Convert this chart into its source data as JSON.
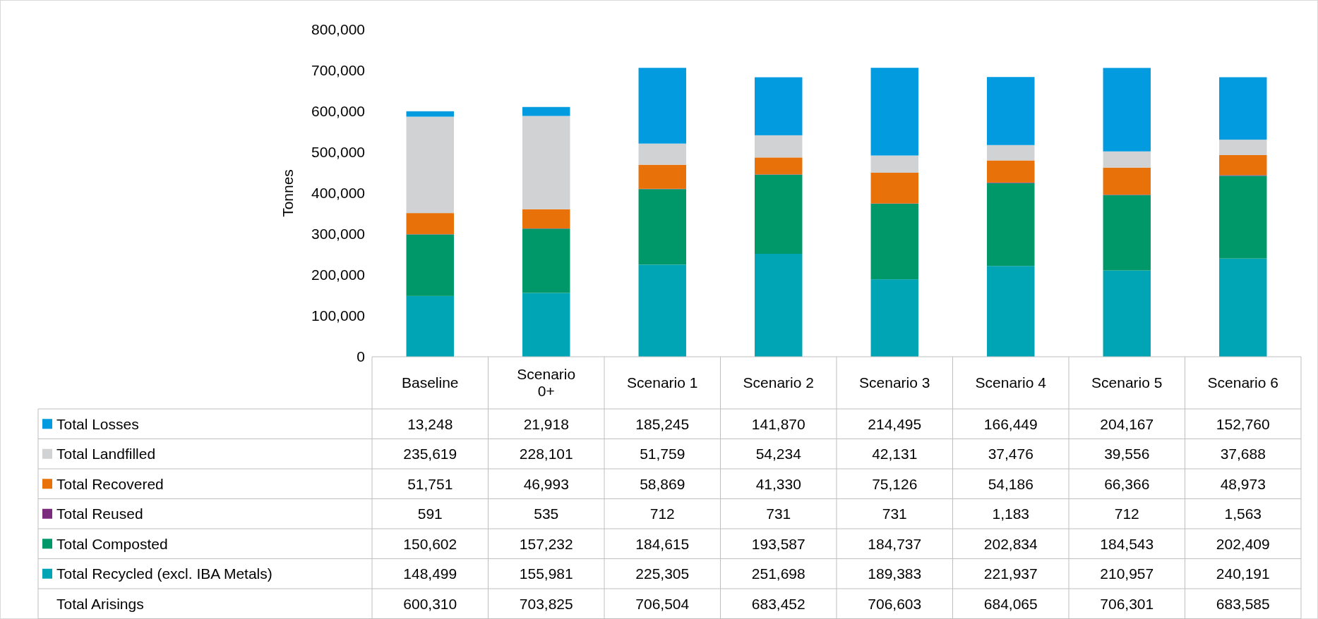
{
  "chart_data": {
    "type": "bar",
    "stacked": true,
    "ylabel": "Tonnes",
    "categories": [
      "Baseline",
      "Scenario 0+",
      "Scenario 1",
      "Scenario 2",
      "Scenario 3",
      "Scenario 4",
      "Scenario 5",
      "Scenario 6"
    ],
    "series": [
      {
        "name": "Total Recycled (excl. IBA Metals)",
        "color": "#00a5b5",
        "values": [
          148499,
          155981,
          225305,
          251698,
          189383,
          221937,
          210957,
          240191
        ],
        "value_labels": [
          "148,499",
          "155,981",
          "225,305",
          "251,698",
          "189,383",
          "221,937",
          "210,957",
          "240,191"
        ]
      },
      {
        "name": "Total Composted",
        "color": "#009868",
        "values": [
          150602,
          157232,
          184615,
          193587,
          184737,
          202834,
          184543,
          202409
        ],
        "value_labels": [
          "150,602",
          "157,232",
          "184,615",
          "193,587",
          "184,737",
          "202,834",
          "184,543",
          "202,409"
        ]
      },
      {
        "name": "Total Reused",
        "color": "#7b2b7e",
        "values": [
          591,
          535,
          712,
          731,
          731,
          1183,
          712,
          1563
        ],
        "value_labels": [
          "591",
          "535",
          "712",
          "731",
          "731",
          "1,183",
          "712",
          "1,563"
        ]
      },
      {
        "name": "Total Recovered",
        "color": "#e8710a",
        "values": [
          51751,
          46993,
          58869,
          41330,
          75126,
          54186,
          66366,
          48973
        ],
        "value_labels": [
          "51,751",
          "46,993",
          "58,869",
          "41,330",
          "75,126",
          "54,186",
          "66,366",
          "48,973"
        ]
      },
      {
        "name": "Total Landfilled",
        "color": "#d0d2d3",
        "values": [
          235619,
          228101,
          51759,
          54234,
          42131,
          37476,
          39556,
          37688
        ],
        "value_labels": [
          "235,619",
          "228,101",
          "51,759",
          "54,234",
          "42,131",
          "37,476",
          "39,556",
          "37,688"
        ]
      },
      {
        "name": "Total Losses",
        "color": "#039bdf",
        "values": [
          13248,
          21918,
          185245,
          141870,
          214495,
          166449,
          204167,
          152760
        ],
        "value_labels": [
          "13,248",
          "21,918",
          "185,245",
          "141,870",
          "214,495",
          "166,449",
          "204,167",
          "152,760"
        ]
      }
    ],
    "annotations": [
      "Total Arisings",
      "600,310",
      "703,825",
      "706,504",
      "683,452",
      "706,603",
      "684,065",
      "706,301",
      "683,585"
    ],
    "ylim": [
      0,
      800000
    ],
    "yticks": [
      {
        "value": 0,
        "label": "0"
      },
      {
        "value": 100000,
        "label": "100,000"
      },
      {
        "value": 200000,
        "label": "200,000"
      },
      {
        "value": 300000,
        "label": "300,000"
      },
      {
        "value": 400000,
        "label": "400,000"
      },
      {
        "value": 500000,
        "label": "500,000"
      },
      {
        "value": 600000,
        "label": "600,000"
      },
      {
        "value": 700000,
        "label": "700,000"
      },
      {
        "value": 800000,
        "label": "800,000"
      }
    ],
    "legend": "bottom"
  }
}
